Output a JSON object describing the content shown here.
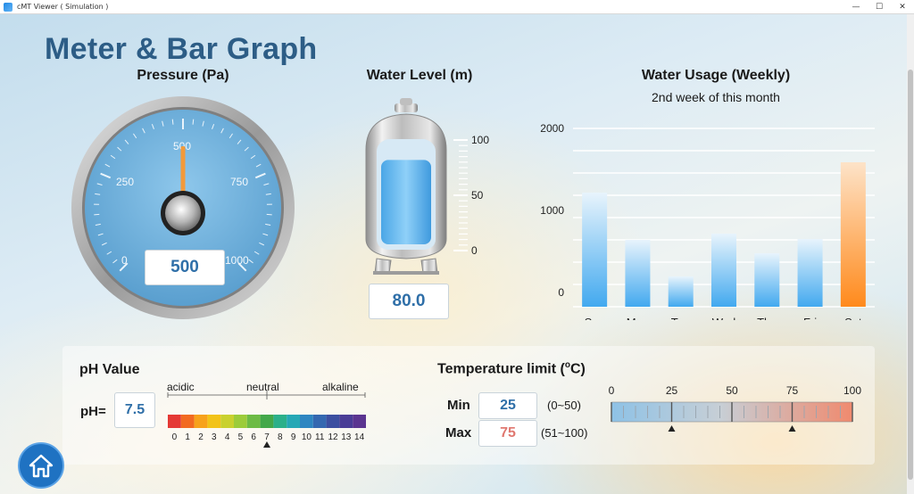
{
  "window": {
    "title": "cMT Viewer ( Simulation )",
    "controls": [
      "—",
      "☐",
      "✕"
    ]
  },
  "page_title": "Meter & Bar Graph",
  "pressure": {
    "title": "Pressure (Pa)",
    "min": 0,
    "max": 1000,
    "value": 500,
    "value_text": "500",
    "ticks": [
      "0",
      "250",
      "500",
      "750",
      "1000"
    ],
    "colors": {
      "needle": "#f39a3a",
      "face": "#6aaedb",
      "value": "#2f6fa8"
    }
  },
  "water_level": {
    "title": "Water Level (m)",
    "min": 0,
    "max": 100,
    "value": 80.0,
    "value_text": "80.0",
    "ticks": [
      "100",
      "50",
      "0"
    ],
    "colors": {
      "fill": "#5bb4ef"
    }
  },
  "water_usage": {
    "title": "Water Usage (Weekly)",
    "subtitle": "2nd week of this month",
    "y_ticks": [
      "2000",
      "1000",
      "0"
    ],
    "colors": {
      "bar": "#4aaef0",
      "highlight": "#ff8a1c"
    }
  },
  "chart_data": {
    "type": "bar",
    "categories": [
      "Sun",
      "Mon",
      "Tue",
      "Wed",
      "Thu",
      "Fri",
      "Sat"
    ],
    "values": [
      1280,
      750,
      340,
      820,
      600,
      760,
      1620
    ],
    "ylim": [
      0,
      2000
    ],
    "highlight_category": "Sat",
    "grid": true
  },
  "ph": {
    "title": "pH Value",
    "label": "pH=",
    "value": 7.5,
    "value_text": "7.5",
    "scale_labels": {
      "acidic": "acidic",
      "neutral": "neutral",
      "alkaline": "alkaline"
    },
    "ticks": [
      "0",
      "1",
      "2",
      "3",
      "4",
      "5",
      "6",
      "7",
      "8",
      "9",
      "10",
      "11",
      "12",
      "13",
      "14"
    ],
    "colors": [
      "#e53935",
      "#f26a21",
      "#f7a21b",
      "#f2c318",
      "#c9d12f",
      "#9ccc3a",
      "#6dbb45",
      "#43a84a",
      "#2bb08a",
      "#26a8b5",
      "#2e86c1",
      "#3468b0",
      "#3c4fa0",
      "#4a3d96",
      "#5b3590"
    ]
  },
  "temperature": {
    "title": "Temperature limit (",
    "title_unit": "C)",
    "title_degree": "o",
    "min_label": "Min",
    "max_label": "Max",
    "min_value": "25",
    "max_value": "75",
    "min_range": "(0~50)",
    "max_range": "(51~100)",
    "scale_min": 0,
    "scale_max": 100,
    "ticks": [
      "0",
      "25",
      "50",
      "75",
      "100"
    ],
    "markers": [
      25,
      75
    ],
    "colors": {
      "min_text": "#2f6fa8",
      "max_text": "#e07870",
      "cold": "#8ec2e6",
      "hot": "#f08a6e"
    }
  },
  "home_button": {
    "icon": "home-icon"
  }
}
